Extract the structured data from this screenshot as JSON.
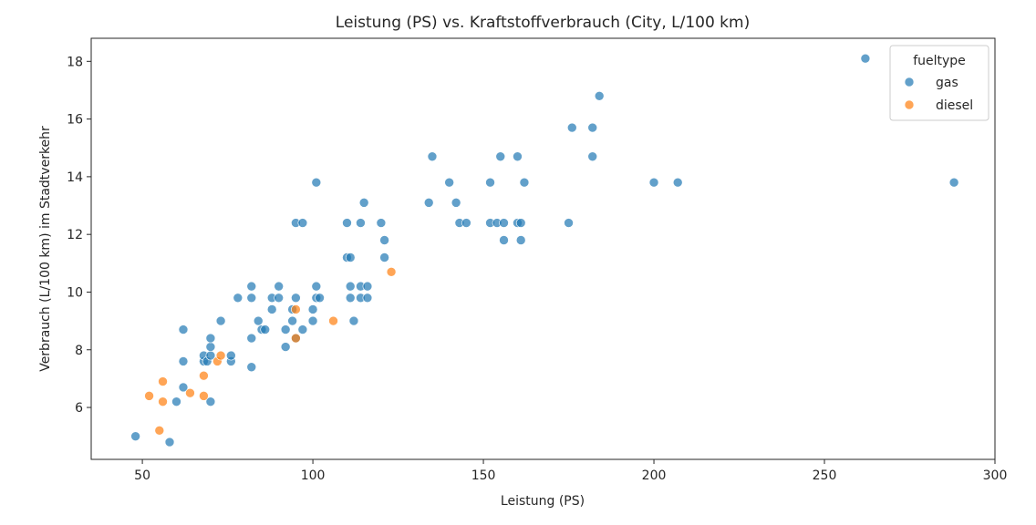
{
  "chart_data": {
    "type": "scatter",
    "title": "Leistung (PS) vs. Kraftstoffverbrauch (City, L/100 km)",
    "xlabel": "Leistung (PS)",
    "ylabel": "Verbrauch (L/100 km) im Stadtverkehr",
    "xlim": [
      35,
      300
    ],
    "ylim": [
      4.2,
      18.8
    ],
    "xticks": [
      50,
      100,
      150,
      200,
      250,
      300
    ],
    "yticks": [
      6,
      8,
      10,
      12,
      14,
      16,
      18
    ],
    "grid": false,
    "legend": {
      "title": "fueltype",
      "placement": "top-right"
    },
    "series": [
      {
        "name": "gas",
        "color": "#1f77b4",
        "points": [
          [
            48,
            5.0
          ],
          [
            58,
            4.8
          ],
          [
            60,
            6.2
          ],
          [
            62,
            6.7
          ],
          [
            62,
            7.6
          ],
          [
            62,
            8.7
          ],
          [
            68,
            7.6
          ],
          [
            68,
            7.8
          ],
          [
            69,
            7.6
          ],
          [
            70,
            6.2
          ],
          [
            70,
            7.8
          ],
          [
            70,
            8.1
          ],
          [
            70,
            8.4
          ],
          [
            73,
            9.0
          ],
          [
            76,
            7.6
          ],
          [
            76,
            7.8
          ],
          [
            78,
            9.8
          ],
          [
            82,
            7.4
          ],
          [
            82,
            8.4
          ],
          [
            82,
            9.8
          ],
          [
            82,
            10.2
          ],
          [
            84,
            9.0
          ],
          [
            85,
            8.7
          ],
          [
            86,
            8.7
          ],
          [
            88,
            9.4
          ],
          [
            88,
            9.8
          ],
          [
            90,
            9.8
          ],
          [
            90,
            10.2
          ],
          [
            92,
            8.1
          ],
          [
            92,
            8.7
          ],
          [
            94,
            9.0
          ],
          [
            94,
            9.4
          ],
          [
            95,
            8.4
          ],
          [
            95,
            9.8
          ],
          [
            95,
            12.4
          ],
          [
            97,
            8.7
          ],
          [
            97,
            12.4
          ],
          [
            100,
            9.0
          ],
          [
            100,
            9.4
          ],
          [
            101,
            9.8
          ],
          [
            101,
            10.2
          ],
          [
            101,
            13.8
          ],
          [
            102,
            9.8
          ],
          [
            110,
            11.2
          ],
          [
            110,
            12.4
          ],
          [
            111,
            9.8
          ],
          [
            111,
            10.2
          ],
          [
            111,
            11.2
          ],
          [
            112,
            9.0
          ],
          [
            114,
            9.8
          ],
          [
            114,
            10.2
          ],
          [
            114,
            12.4
          ],
          [
            115,
            13.1
          ],
          [
            116,
            9.8
          ],
          [
            116,
            10.2
          ],
          [
            120,
            12.4
          ],
          [
            121,
            11.2
          ],
          [
            121,
            11.8
          ],
          [
            134,
            13.1
          ],
          [
            135,
            14.7
          ],
          [
            140,
            13.8
          ],
          [
            142,
            13.1
          ],
          [
            143,
            12.4
          ],
          [
            145,
            12.4
          ],
          [
            152,
            12.4
          ],
          [
            152,
            13.8
          ],
          [
            154,
            12.4
          ],
          [
            155,
            14.7
          ],
          [
            156,
            12.4
          ],
          [
            156,
            11.8
          ],
          [
            160,
            12.4
          ],
          [
            160,
            14.7
          ],
          [
            161,
            11.8
          ],
          [
            161,
            12.4
          ],
          [
            162,
            13.8
          ],
          [
            175,
            12.4
          ],
          [
            176,
            15.7
          ],
          [
            182,
            14.7
          ],
          [
            182,
            15.7
          ],
          [
            184,
            16.8
          ],
          [
            200,
            13.8
          ],
          [
            207,
            13.8
          ],
          [
            262,
            18.1
          ],
          [
            288,
            13.8
          ]
        ]
      },
      {
        "name": "diesel",
        "color": "#ff7f0e",
        "points": [
          [
            52,
            6.4
          ],
          [
            55,
            5.2
          ],
          [
            56,
            6.2
          ],
          [
            56,
            6.9
          ],
          [
            64,
            6.5
          ],
          [
            68,
            6.4
          ],
          [
            68,
            7.1
          ],
          [
            72,
            7.6
          ],
          [
            73,
            7.8
          ],
          [
            95,
            8.4
          ],
          [
            95,
            9.4
          ],
          [
            106,
            9.0
          ],
          [
            123,
            10.7
          ]
        ]
      }
    ]
  }
}
